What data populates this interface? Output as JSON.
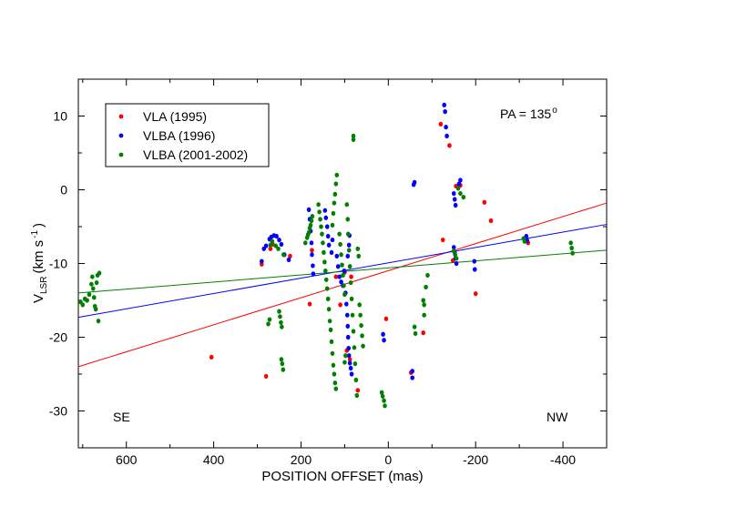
{
  "chart_data": {
    "type": "scatter",
    "title": "",
    "xlabel": "POSITION OFFSET (mas)",
    "ylabel_main": "V",
    "ylabel_sub": "LSR",
    "ylabel_unit_pre": "(km s",
    "ylabel_unit_sup": "-1",
    "ylabel_unit_post": ")",
    "xlim": [
      710,
      -500
    ],
    "ylim": [
      -35,
      15
    ],
    "x_ticks": [
      600,
      400,
      200,
      0,
      -200,
      -400
    ],
    "x_tick_labels": [
      "600",
      "400",
      "200",
      "0",
      "-200",
      "-400"
    ],
    "y_ticks": [
      10,
      0,
      -10,
      -20,
      -30
    ],
    "y_tick_labels": [
      "10",
      "0",
      "-10",
      "-20",
      "-30"
    ],
    "annotations": {
      "pa_text": "PA = 135",
      "pa_sup": "o",
      "left_label": "SE",
      "right_label": "NW"
    },
    "legend": {
      "position": "top-left",
      "entries": [
        {
          "label": "VLA (1995)",
          "color": "#ff0000"
        },
        {
          "label": "VLBA (1996)",
          "color": "#0000ff"
        },
        {
          "label": "VLBA (2001-2002)",
          "color": "#008000"
        }
      ]
    },
    "series": [
      {
        "name": "VLA (1995)",
        "color": "#ff0000",
        "points": [
          [
            405,
            -22.7
          ],
          [
            280,
            -25.3
          ],
          [
            290,
            -10.1
          ],
          [
            270,
            -8.0
          ],
          [
            265,
            -7.4
          ],
          [
            225,
            -9.0
          ],
          [
            180,
            -15.5
          ],
          [
            175,
            -8.2
          ],
          [
            120,
            -11.8
          ],
          [
            110,
            -15.6
          ],
          [
            100,
            -11.2
          ],
          [
            95,
            -21.8
          ],
          [
            88,
            -23.0
          ],
          [
            85,
            -11.8
          ],
          [
            70,
            -27.2
          ],
          [
            5,
            -17.5
          ],
          [
            -52,
            -24.8
          ],
          [
            -80,
            -19.4
          ],
          [
            -120,
            8.9
          ],
          [
            -125,
            -6.8
          ],
          [
            -140,
            6.0
          ],
          [
            -148,
            -9.6
          ],
          [
            -155,
            0.5
          ],
          [
            -165,
            0.6
          ],
          [
            -200,
            -14.1
          ],
          [
            -220,
            -1.7
          ],
          [
            -235,
            -4.2
          ],
          [
            -320,
            -7.2
          ]
        ]
      },
      {
        "name": "VLBA (1996)",
        "color": "#0000ff",
        "points": [
          [
            290,
            -9.7
          ],
          [
            285,
            -8.0
          ],
          [
            280,
            -7.6
          ],
          [
            272,
            -6.7
          ],
          [
            268,
            -6.4
          ],
          [
            262,
            -6.2
          ],
          [
            256,
            -6.3
          ],
          [
            250,
            -6.8
          ],
          [
            245,
            -7.4
          ],
          [
            238,
            -8.8
          ],
          [
            228,
            -9.5
          ],
          [
            182,
            -2.7
          ],
          [
            180,
            -4.0
          ],
          [
            178,
            -5.6
          ],
          [
            176,
            -7.2
          ],
          [
            175,
            -8.8
          ],
          [
            173,
            -10.3
          ],
          [
            172,
            -11.4
          ],
          [
            145,
            -2.8
          ],
          [
            143,
            -3.8
          ],
          [
            140,
            -5.0
          ],
          [
            138,
            -6.3
          ],
          [
            136,
            -7.5
          ],
          [
            130,
            -8.5
          ],
          [
            128,
            -6.8
          ],
          [
            118,
            -9.0
          ],
          [
            115,
            -10.4
          ],
          [
            112,
            -11.8
          ],
          [
            108,
            -12.5
          ],
          [
            104,
            -13.0
          ],
          [
            101,
            -11.0
          ],
          [
            98,
            -14.0
          ],
          [
            96,
            -15.5
          ],
          [
            94,
            -17.0
          ],
          [
            93,
            -18.5
          ],
          [
            92,
            -20.0
          ],
          [
            91,
            -21.5
          ],
          [
            90,
            -22.5
          ],
          [
            88,
            -23.5
          ],
          [
            86,
            -24.2
          ],
          [
            84,
            -25.0
          ],
          [
            93,
            -9.0
          ],
          [
            90,
            -7.5
          ],
          [
            89,
            -6.2
          ],
          [
            -60,
            1.0
          ],
          [
            -58,
            0.7
          ],
          [
            12,
            -19.6
          ],
          [
            10,
            -20.4
          ],
          [
            -55,
            -25.5
          ],
          [
            -55,
            -24.6
          ],
          [
            -128,
            11.5
          ],
          [
            -130,
            10.6
          ],
          [
            -132,
            8.5
          ],
          [
            -134,
            7.3
          ],
          [
            -150,
            -0.5
          ],
          [
            -152,
            -1.3
          ],
          [
            -154,
            -2.1
          ],
          [
            -150,
            -7.8
          ],
          [
            -152,
            -8.5
          ],
          [
            -154,
            -9.3
          ],
          [
            -156,
            -10.0
          ],
          [
            -162,
            0.8
          ],
          [
            -165,
            1.3
          ],
          [
            -197,
            -9.7
          ],
          [
            -198,
            -10.8
          ],
          [
            -316,
            -6.3
          ],
          [
            -318,
            -6.9
          ]
        ]
      },
      {
        "name": "VLBA (2001-2002)",
        "color": "#008000",
        "points": [
          [
            705,
            -15.2
          ],
          [
            700,
            -15.6
          ],
          [
            695,
            -14.8
          ],
          [
            690,
            -15.0
          ],
          [
            685,
            -14.2
          ],
          [
            680,
            -12.8
          ],
          [
            678,
            -11.8
          ],
          [
            676,
            -13.4
          ],
          [
            674,
            -14.6
          ],
          [
            672,
            -15.8
          ],
          [
            670,
            -16.2
          ],
          [
            668,
            -12.6
          ],
          [
            666,
            -11.6
          ],
          [
            664,
            -17.8
          ],
          [
            662,
            -11.3
          ],
          [
            275,
            -18.2
          ],
          [
            272,
            -17.6
          ],
          [
            250,
            -16.5
          ],
          [
            248,
            -17.2
          ],
          [
            246,
            -18.0
          ],
          [
            244,
            -18.6
          ],
          [
            245,
            -23.0
          ],
          [
            243,
            -23.6
          ],
          [
            241,
            -24.4
          ],
          [
            270,
            -7.5
          ],
          [
            266,
            -7.0
          ],
          [
            258,
            -7.6
          ],
          [
            252,
            -8.0
          ],
          [
            240,
            -8.8
          ],
          [
            190,
            -7.2
          ],
          [
            186,
            -6.5
          ],
          [
            184,
            -6.1
          ],
          [
            182,
            -5.8
          ],
          [
            180,
            -5.2
          ],
          [
            178,
            -4.8
          ],
          [
            176,
            -4.2
          ],
          [
            174,
            -3.6
          ],
          [
            160,
            -2.0
          ],
          [
            158,
            -3.0
          ],
          [
            156,
            -4.0
          ],
          [
            154,
            -5.0
          ],
          [
            152,
            -6.0
          ],
          [
            150,
            -7.2
          ],
          [
            148,
            -8.5
          ],
          [
            146,
            -9.8
          ],
          [
            144,
            -11.0
          ],
          [
            142,
            -12.2
          ],
          [
            140,
            -13.4
          ],
          [
            138,
            -14.8
          ],
          [
            136,
            -16.2
          ],
          [
            134,
            -17.8
          ],
          [
            132,
            -19.0
          ],
          [
            130,
            -20.6
          ],
          [
            128,
            -22.2
          ],
          [
            126,
            -23.8
          ],
          [
            124,
            -25.0
          ],
          [
            122,
            -26.2
          ],
          [
            120,
            -27.0
          ],
          [
            118,
            2.0
          ],
          [
            120,
            0.8
          ],
          [
            122,
            -0.6
          ],
          [
            124,
            -1.8
          ],
          [
            126,
            -3.2
          ],
          [
            128,
            -4.8
          ],
          [
            112,
            -6.0
          ],
          [
            110,
            -7.4
          ],
          [
            108,
            -8.8
          ],
          [
            106,
            -10.2
          ],
          [
            104,
            -11.6
          ],
          [
            102,
            -13.0
          ],
          [
            100,
            -14.2
          ],
          [
            100,
            -23.4
          ],
          [
            98,
            -22.5
          ],
          [
            95,
            -2.0
          ],
          [
            93,
            -4.0
          ],
          [
            92,
            -6.0
          ],
          [
            90,
            -8.2
          ],
          [
            88,
            -10.4
          ],
          [
            86,
            -12.6
          ],
          [
            84,
            -14.8
          ],
          [
            82,
            -17.0
          ],
          [
            80,
            -19.2
          ],
          [
            78,
            -21.4
          ],
          [
            76,
            -23.6
          ],
          [
            74,
            -25.8
          ],
          [
            72,
            -27.9
          ],
          [
            80,
            6.8
          ],
          [
            80,
            7.3
          ],
          [
            70,
            -8.0
          ],
          [
            68,
            -9.0
          ],
          [
            66,
            -15.6
          ],
          [
            64,
            -17.0
          ],
          [
            62,
            -18.4
          ],
          [
            60,
            -19.8
          ],
          [
            58,
            -21.2
          ],
          [
            15,
            -27.5
          ],
          [
            13,
            -28.0
          ],
          [
            10,
            -28.6
          ],
          [
            8,
            -29.3
          ],
          [
            -60,
            -18.6
          ],
          [
            -62,
            -19.5
          ],
          [
            -80,
            -15.0
          ],
          [
            -82,
            -15.6
          ],
          [
            -82,
            -17.0
          ],
          [
            -90,
            -11.6
          ],
          [
            -86,
            -13.2
          ],
          [
            -150,
            -8.3
          ],
          [
            -153,
            -8.8
          ],
          [
            -156,
            -9.3
          ],
          [
            -160,
            0.2
          ],
          [
            -165,
            -0.5
          ],
          [
            -172,
            -1.0
          ],
          [
            -310,
            -6.6
          ],
          [
            -312,
            -7.0
          ],
          [
            -418,
            -7.2
          ],
          [
            -420,
            -7.9
          ],
          [
            -422,
            -8.6
          ]
        ]
      }
    ],
    "fit_lines": [
      {
        "name": "VLA fit",
        "color": "#ff0000",
        "x": [
          710,
          -500
        ],
        "y": [
          -24.0,
          -1.8
        ]
      },
      {
        "name": "VLBA 1996 fit",
        "color": "#0000ff",
        "x": [
          710,
          -500
        ],
        "y": [
          -17.3,
          -4.7
        ]
      },
      {
        "name": "VLBA 2001-2002 fit",
        "color": "#008000",
        "x": [
          710,
          -500
        ],
        "y": [
          -14.0,
          -8.2
        ]
      }
    ]
  }
}
